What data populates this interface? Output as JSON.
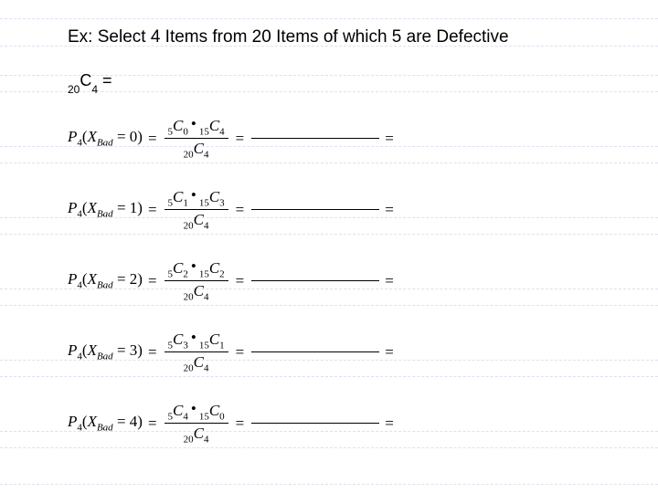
{
  "title": "Ex: Select 4 Items from 20 Items of which 5 are Defective",
  "combo": {
    "pre": "20",
    "C": "C",
    "post": "4",
    "eq": " = "
  },
  "rows": [
    {
      "x": "0",
      "num_a_pre": "5",
      "num_a_post": "0",
      "num_b_pre": "15",
      "num_b_post": "4",
      "den_pre": "20",
      "den_post": "4"
    },
    {
      "x": "1",
      "num_a_pre": "5",
      "num_a_post": "1",
      "num_b_pre": "15",
      "num_b_post": "3",
      "den_pre": "20",
      "den_post": "4"
    },
    {
      "x": "2",
      "num_a_pre": "5",
      "num_a_post": "2",
      "num_b_pre": "15",
      "num_b_post": "2",
      "den_pre": "20",
      "den_post": "4"
    },
    {
      "x": "3",
      "num_a_pre": "5",
      "num_a_post": "3",
      "num_b_pre": "15",
      "num_b_post": "1",
      "den_pre": "20",
      "den_post": "4"
    },
    {
      "x": "4",
      "num_a_pre": "5",
      "num_a_post": "4",
      "num_b_pre": "15",
      "num_b_post": "0",
      "den_pre": "20",
      "den_post": "4"
    }
  ],
  "labels": {
    "P": "P",
    "Pnum": "4",
    "X": "X",
    "Bad": "Bad",
    "C": "C",
    "eq": "=",
    "dot": "•"
  },
  "style": {
    "rule_color": "#e0dff0",
    "rule_positions": [
      20,
      50,
      82,
      100,
      160,
      178,
      238,
      256,
      316,
      334,
      394,
      412,
      472,
      490,
      530
    ]
  }
}
